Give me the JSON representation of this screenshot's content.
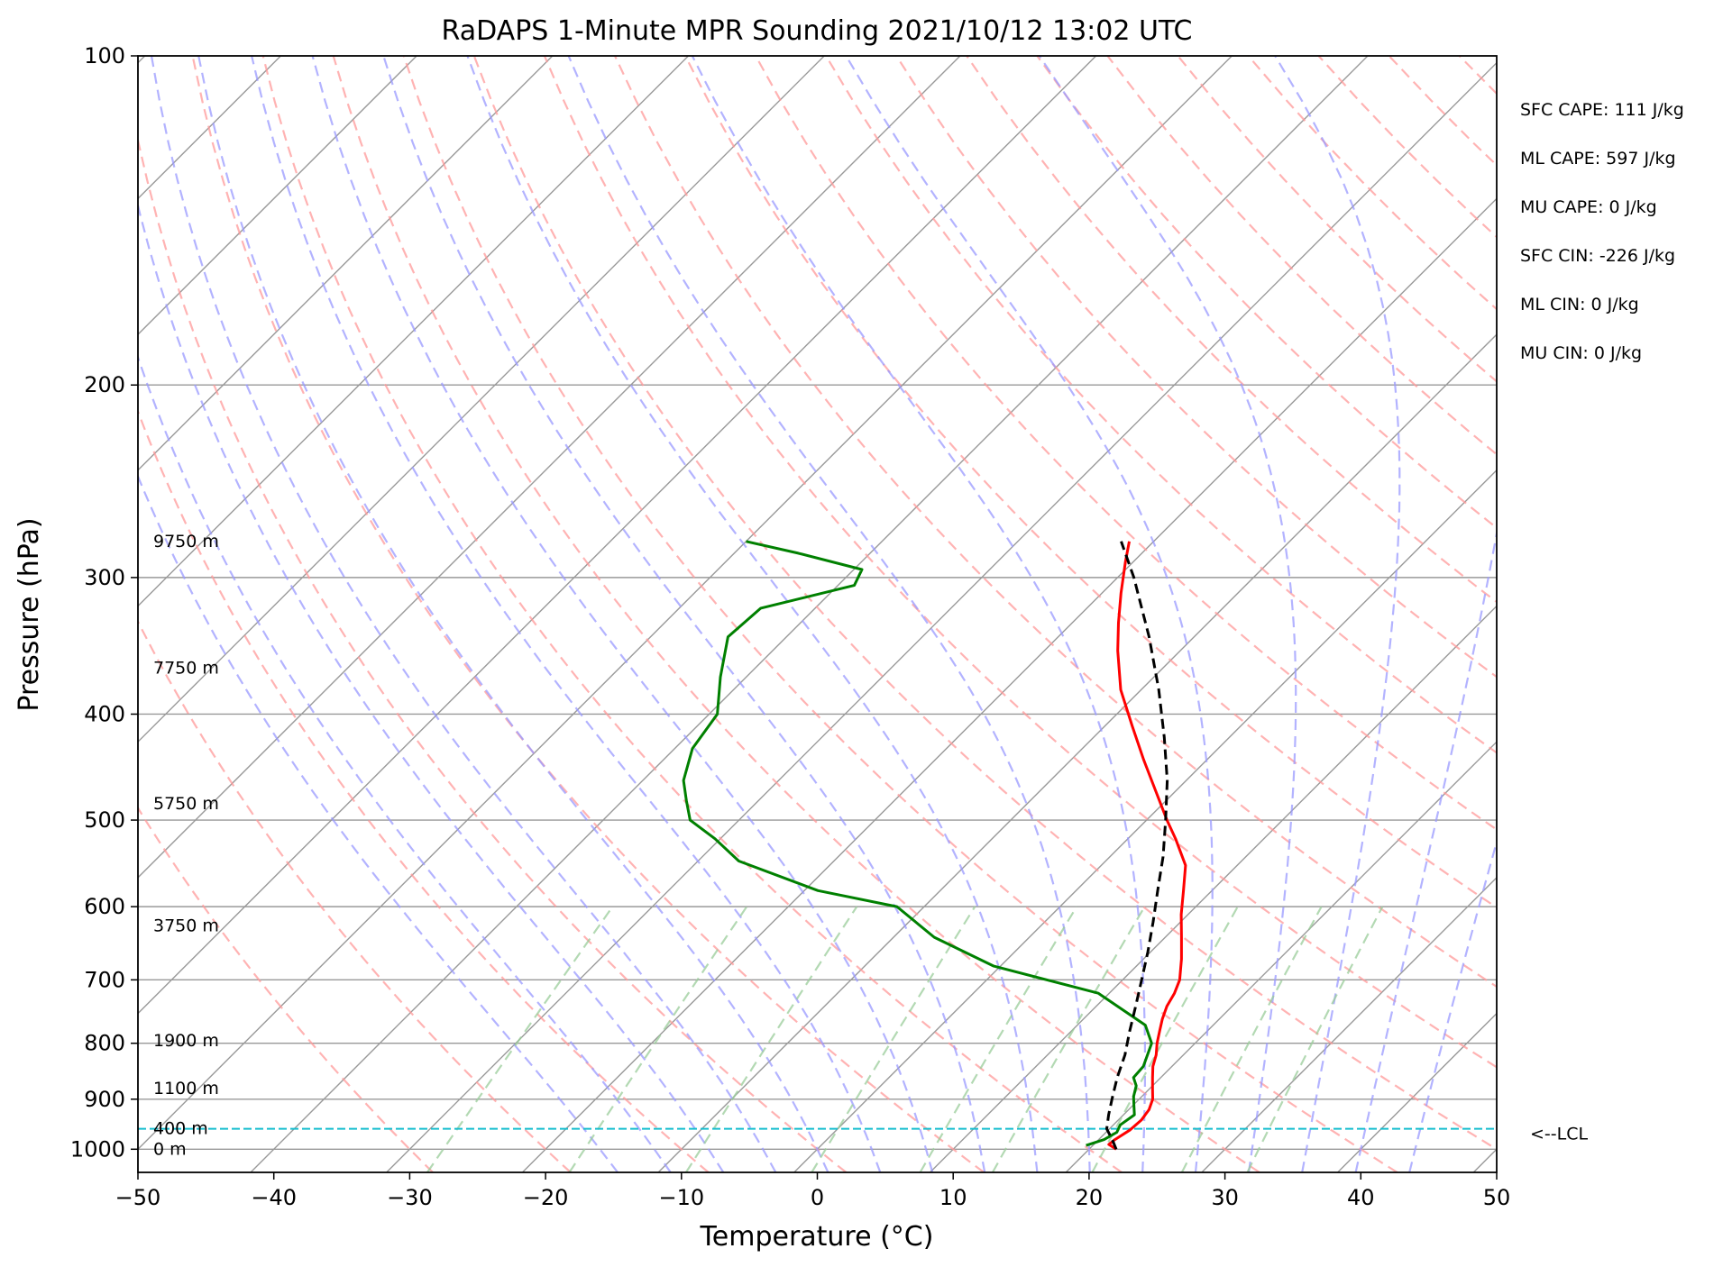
{
  "chart_data": {
    "type": "skew-t",
    "title": "RaDAPS 1-Minute MPR Sounding 2021/10/12 13:02 UTC",
    "xlabel": "Temperature (°C)",
    "ylabel": "Pressure (hPa)",
    "xlim": [
      -50,
      50
    ],
    "ylim": [
      1050,
      100
    ],
    "y_scale": "log",
    "grid": true,
    "x_ticks": [
      "−50",
      "−40",
      "−30",
      "−20",
      "−10",
      "0",
      "10",
      "20",
      "30",
      "40",
      "50"
    ],
    "y_ticks": [
      {
        "p": 100,
        "label": "100"
      },
      {
        "p": 200,
        "label": "200"
      },
      {
        "p": 300,
        "label": "300"
      },
      {
        "p": 400,
        "label": "400"
      },
      {
        "p": 500,
        "label": "500"
      },
      {
        "p": 600,
        "label": "600"
      },
      {
        "p": 700,
        "label": "700"
      },
      {
        "p": 800,
        "label": "800"
      },
      {
        "p": 900,
        "label": "900"
      },
      {
        "p": 1000,
        "label": "1000"
      }
    ],
    "height_labels": [
      {
        "p": 278,
        "text": "9750 m"
      },
      {
        "p": 363,
        "text": "7750 m"
      },
      {
        "p": 483,
        "text": "5750 m"
      },
      {
        "p": 625,
        "text": "3750 m"
      },
      {
        "p": 796,
        "text": "1900 m"
      },
      {
        "p": 880,
        "text": "1100 m"
      },
      {
        "p": 958,
        "text": "400 m"
      },
      {
        "p": 1000,
        "text": "0 m"
      }
    ],
    "indices": [
      "SFC CAPE: 111 J/kg",
      "ML CAPE: 597 J/kg",
      "MU CAPE: 0 J/kg",
      "SFC CIN: -226 J/kg",
      "ML CIN: 0 J/kg",
      "MU CIN: 0 J/kg"
    ],
    "lcl": {
      "p": 958,
      "label": "<--LCL"
    },
    "colors": {
      "temperature": "#ff0000",
      "dewpoint": "#008000",
      "parcel": "#000000",
      "lcl": "#17becf",
      "dry_adiabat": "#ff9999",
      "moist_adiabat": "#9999ff",
      "mixing_ratio": "#99cc99",
      "isotherm": "#999999"
    },
    "series": [
      {
        "key": "temperature",
        "p": [
          1000,
          990,
          980,
          960,
          940,
          920,
          900,
          880,
          860,
          840,
          820,
          800,
          780,
          760,
          740,
          720,
          700,
          670,
          640,
          610,
          580,
          550,
          520,
          500,
          470,
          440,
          410,
          380,
          350,
          330,
          310,
          290,
          278
        ],
        "T": [
          22.0,
          21.1,
          21.2,
          21.6,
          21.7,
          21.5,
          21.0,
          20.2,
          19.4,
          18.6,
          18.0,
          17.2,
          16.5,
          15.8,
          15.2,
          14.8,
          14.2,
          12.8,
          11.2,
          9.5,
          7.9,
          6.2,
          3.5,
          1.5,
          -1.5,
          -4.7,
          -8.0,
          -11.5,
          -14.6,
          -16.6,
          -18.6,
          -20.6,
          -21.8
        ]
      },
      {
        "key": "dewpoint",
        "p": [
          992,
          980,
          965,
          950,
          930,
          910,
          895,
          875,
          860,
          840,
          800,
          770,
          720,
          680,
          640,
          600,
          580,
          545,
          520,
          500,
          480,
          460,
          430,
          400,
          370,
          340,
          320,
          305,
          295,
          285,
          278
        ],
        "T": [
          19.5,
          20.4,
          20.8,
          20.5,
          20.8,
          20.0,
          19.4,
          18.8,
          18.0,
          17.9,
          16.8,
          15.0,
          9.2,
          -0.5,
          -7.0,
          -12.0,
          -19.0,
          -27.0,
          -30.4,
          -33.6,
          -35.3,
          -37.0,
          -38.7,
          -39.4,
          -41.9,
          -44.3,
          -44.0,
          -38.8,
          -39.4,
          -45.3,
          -50.0
        ]
      },
      {
        "key": "parcel",
        "p": [
          1000,
          980,
          958,
          930,
          900,
          860,
          820,
          780,
          740,
          700,
          660,
          620,
          580,
          540,
          500,
          460,
          420,
          380,
          340,
          300,
          278
        ],
        "T": [
          22.0,
          21.0,
          19.8,
          18.9,
          18.0,
          16.8,
          15.7,
          14.3,
          12.9,
          11.4,
          9.8,
          8.0,
          6.0,
          3.9,
          1.4,
          -1.4,
          -4.8,
          -8.7,
          -13.3,
          -18.8,
          -22.4
        ]
      }
    ]
  }
}
